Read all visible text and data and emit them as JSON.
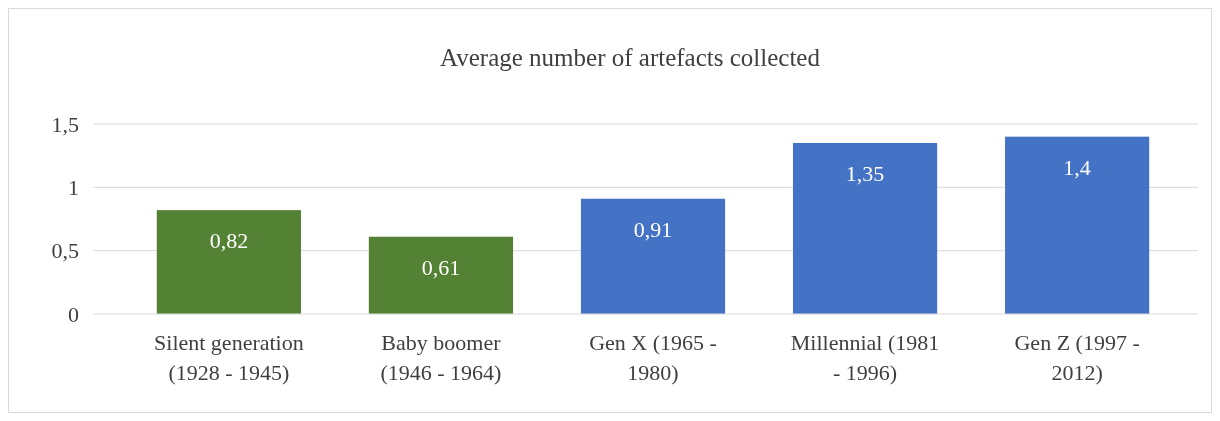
{
  "chart_data": {
    "type": "bar",
    "title": "Average number of artefacts collected",
    "categories": [
      "Silent generation (1928 - 1945)",
      "Baby boomer (1946 - 1964)",
      "Gen X (1965 - 1980)",
      "Millennial (1981 - 1996)",
      "Gen Z (1997 - 2012)"
    ],
    "values": [
      0.82,
      0.61,
      0.91,
      1.35,
      1.4
    ],
    "colors": [
      "#548235",
      "#548235",
      "#4472c4",
      "#4472c4",
      "#4472c4"
    ],
    "value_labels": [
      "0,82",
      "0,61",
      "0,91",
      "1,35",
      "1,4"
    ],
    "ylim": [
      0,
      1.5
    ],
    "yticks": [
      0,
      {
        "value": 0.5,
        "label": "0,5"
      },
      1,
      {
        "value": 1.5,
        "label": "1,5"
      }
    ],
    "grid": "y"
  }
}
